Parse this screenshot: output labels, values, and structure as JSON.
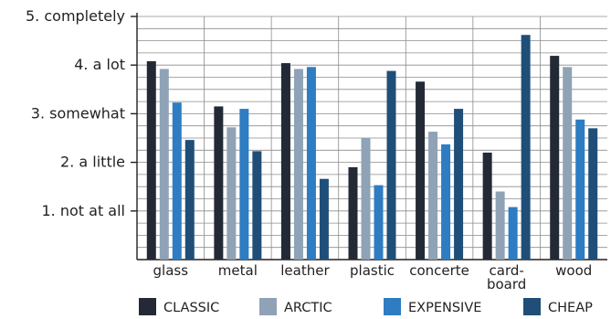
{
  "chart_data": {
    "type": "bar",
    "title": "",
    "xlabel": "",
    "ylabel": "",
    "ylim": [
      0,
      5
    ],
    "grid": true,
    "legend_position": "bottom",
    "y_ticks": [
      {
        "value": 5,
        "label": "5. completely"
      },
      {
        "value": 4,
        "label": "4. a lot"
      },
      {
        "value": 3,
        "label": "3. somewhat"
      },
      {
        "value": 2,
        "label": "2. a little"
      },
      {
        "value": 1,
        "label": "1. not at all"
      }
    ],
    "categories": [
      "glass",
      "metal",
      "leather",
      "plastic",
      "concerte",
      [
        "card-",
        "board"
      ],
      "wood"
    ],
    "series": [
      {
        "name": "CLASSIC",
        "color": "#232a35",
        "values": [
          4.08,
          3.15,
          4.04,
          1.9,
          3.66,
          2.2,
          4.19
        ]
      },
      {
        "name": "ARCTIC",
        "color": "#8fa2b6",
        "values": [
          3.92,
          2.72,
          3.92,
          2.5,
          2.63,
          1.4,
          3.96
        ]
      },
      {
        "name": "EXPENSIVE",
        "color": "#2e7cc2",
        "values": [
          3.23,
          3.1,
          3.96,
          1.53,
          2.37,
          1.08,
          2.88
        ]
      },
      {
        "name": "CHEAP",
        "color": "#1f4f78",
        "values": [
          2.46,
          2.23,
          1.66,
          3.88,
          3.1,
          4.62,
          2.7
        ]
      }
    ]
  }
}
